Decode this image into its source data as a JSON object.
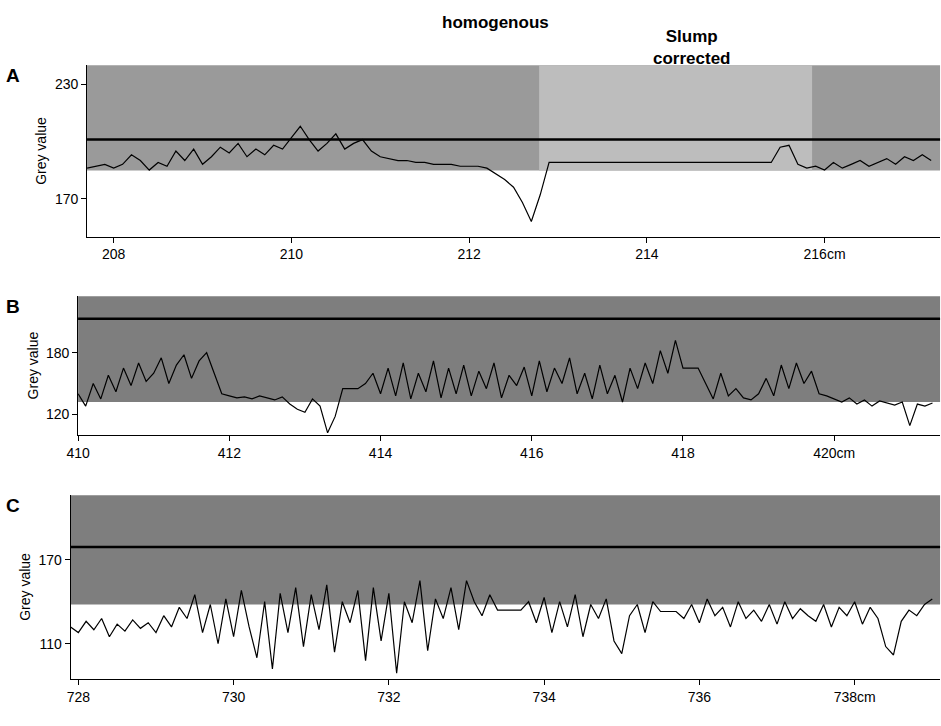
{
  "chart_data": [
    {
      "type": "line",
      "panel": "A",
      "y_label": "Grey value",
      "annotations": [
        {
          "text": "homogenous",
          "x": 212.3
        },
        {
          "text": "Slump corrected",
          "x": 214.5
        }
      ],
      "xlim": [
        207.7,
        217.3
      ],
      "xticks": [
        208,
        210,
        212,
        214,
        {
          "value": 216,
          "label": "216cm"
        }
      ],
      "ylim": [
        150,
        240
      ],
      "yticks": [
        170,
        230
      ],
      "threshold": 201,
      "color": "#000000",
      "x": [
        207.7,
        207.8,
        207.9,
        208.0,
        208.1,
        208.2,
        208.3,
        208.4,
        208.5,
        208.6,
        208.7,
        208.8,
        208.9,
        209.0,
        209.1,
        209.2,
        209.3,
        209.4,
        209.5,
        209.6,
        209.7,
        209.8,
        209.9,
        210.0,
        210.1,
        210.2,
        210.3,
        210.4,
        210.5,
        210.6,
        210.7,
        210.8,
        210.9,
        211.0,
        211.1,
        211.2,
        211.3,
        211.4,
        211.5,
        211.6,
        211.7,
        211.8,
        211.9,
        212.0,
        212.1,
        212.2,
        212.3,
        212.4,
        212.5,
        212.6,
        212.7,
        212.8,
        212.9,
        213.0,
        215.4,
        215.5,
        215.6,
        215.7,
        215.8,
        215.9,
        216.0,
        216.1,
        216.2,
        216.3,
        216.4,
        216.5,
        216.6,
        216.7,
        216.8,
        216.9,
        217.0,
        217.1,
        217.2
      ],
      "values": [
        186,
        187,
        188,
        186,
        188,
        193,
        190,
        185,
        189,
        187,
        195,
        190,
        196,
        188,
        192,
        197,
        194,
        199,
        192,
        196,
        193,
        198,
        196,
        202,
        208,
        201,
        195,
        199,
        204,
        196,
        199,
        201,
        195,
        192,
        191,
        190,
        190,
        189,
        189,
        188,
        188,
        188,
        187,
        187,
        187,
        186,
        183,
        180,
        176,
        168,
        158,
        172,
        189,
        189,
        189,
        197,
        198,
        188,
        186,
        187,
        185,
        189,
        186,
        188,
        190,
        187,
        189,
        191,
        188,
        192,
        190,
        193,
        190
      ]
    },
    {
      "type": "line",
      "panel": "B",
      "y_label": "Grey value",
      "xlim": [
        410,
        421.4
      ],
      "xticks": [
        410,
        412,
        414,
        416,
        418,
        {
          "value": 420,
          "label": "420cm"
        }
      ],
      "ylim": [
        100,
        235
      ],
      "yticks": [
        120,
        180
      ],
      "threshold": 213,
      "color": "#000000",
      "x": [
        410.0,
        410.1,
        410.2,
        410.3,
        410.4,
        410.5,
        410.6,
        410.7,
        410.8,
        410.9,
        411.0,
        411.1,
        411.2,
        411.3,
        411.4,
        411.5,
        411.6,
        411.7,
        411.8,
        411.9,
        412.0,
        412.1,
        412.2,
        412.3,
        412.4,
        412.5,
        412.6,
        412.7,
        412.8,
        412.9,
        413.0,
        413.1,
        413.2,
        413.3,
        413.4,
        413.5,
        413.6,
        413.7,
        413.8,
        413.9,
        414.0,
        414.1,
        414.2,
        414.3,
        414.4,
        414.5,
        414.6,
        414.7,
        414.8,
        414.9,
        415.0,
        415.1,
        415.2,
        415.3,
        415.4,
        415.5,
        415.6,
        415.7,
        415.8,
        415.9,
        416.0,
        416.1,
        416.2,
        416.3,
        416.4,
        416.5,
        416.6,
        416.7,
        416.8,
        416.9,
        417.0,
        417.1,
        417.2,
        417.3,
        417.4,
        417.5,
        417.6,
        417.7,
        417.8,
        417.9,
        418.0,
        418.1,
        418.2,
        418.3,
        418.4,
        418.5,
        418.6,
        418.7,
        418.8,
        418.9,
        419.0,
        419.1,
        419.2,
        419.3,
        419.4,
        419.5,
        419.6,
        419.7,
        419.8,
        419.9,
        420.0,
        420.1,
        420.2,
        420.3,
        420.4,
        420.5,
        420.6,
        420.7,
        420.8,
        420.9,
        421.0,
        421.1,
        421.2,
        421.3
      ],
      "values": [
        140,
        128,
        150,
        135,
        158,
        142,
        165,
        148,
        170,
        152,
        160,
        175,
        150,
        168,
        178,
        155,
        172,
        180,
        160,
        140,
        138,
        136,
        137,
        135,
        138,
        136,
        134,
        137,
        130,
        125,
        122,
        135,
        128,
        102,
        118,
        145,
        145,
        145,
        150,
        160,
        140,
        165,
        138,
        170,
        135,
        160,
        142,
        172,
        136,
        165,
        140,
        168,
        138,
        162,
        145,
        170,
        136,
        158,
        148,
        166,
        138,
        172,
        142,
        165,
        150,
        175,
        140,
        160,
        135,
        168,
        140,
        158,
        132,
        165,
        145,
        170,
        150,
        182,
        160,
        192,
        165,
        165,
        165,
        150,
        135,
        160,
        138,
        145,
        136,
        134,
        140,
        155,
        138,
        168,
        145,
        170,
        150,
        162,
        140,
        138,
        135,
        132,
        136,
        130,
        134,
        128,
        133,
        131,
        129,
        132,
        109,
        130,
        128,
        131
      ]
    },
    {
      "type": "line",
      "panel": "C",
      "y_label": "Grey value",
      "xlim": [
        727.9,
        739.1
      ],
      "xticks": [
        728,
        730,
        732,
        734,
        736,
        {
          "value": 738,
          "label": "738cm"
        }
      ],
      "ylim": [
        85,
        216
      ],
      "yticks": [
        110,
        170
      ],
      "threshold": 179,
      "color": "#000000",
      "x": [
        727.9,
        728.0,
        728.1,
        728.2,
        728.3,
        728.4,
        728.5,
        728.6,
        728.7,
        728.8,
        728.9,
        729.0,
        729.1,
        729.2,
        729.3,
        729.4,
        729.5,
        729.6,
        729.7,
        729.8,
        729.9,
        730.0,
        730.1,
        730.2,
        730.3,
        730.4,
        730.5,
        730.6,
        730.7,
        730.8,
        730.9,
        731.0,
        731.1,
        731.2,
        731.3,
        731.4,
        731.5,
        731.6,
        731.7,
        731.8,
        731.9,
        732.0,
        732.1,
        732.2,
        732.3,
        732.4,
        732.5,
        732.6,
        732.7,
        732.8,
        732.9,
        733.0,
        733.1,
        733.2,
        733.3,
        733.4,
        733.5,
        733.6,
        733.7,
        733.8,
        733.9,
        734.0,
        734.1,
        734.2,
        734.3,
        734.4,
        734.5,
        734.6,
        734.7,
        734.8,
        734.9,
        735.0,
        735.1,
        735.2,
        735.3,
        735.4,
        735.5,
        735.6,
        735.7,
        735.8,
        735.9,
        736.0,
        736.1,
        736.2,
        736.3,
        736.4,
        736.5,
        736.6,
        736.7,
        736.8,
        736.9,
        737.0,
        737.1,
        737.2,
        737.3,
        737.4,
        737.5,
        737.6,
        737.7,
        737.8,
        737.9,
        738.0,
        738.1,
        738.2,
        738.3,
        738.4,
        738.5,
        738.6,
        738.7,
        738.8,
        738.9,
        739.0
      ],
      "values": [
        122,
        118,
        126,
        120,
        128,
        115,
        124,
        119,
        127,
        121,
        125,
        118,
        130,
        122,
        136,
        128,
        145,
        118,
        138,
        110,
        142,
        115,
        148,
        122,
        100,
        140,
        92,
        146,
        118,
        150,
        108,
        145,
        120,
        152,
        104,
        140,
        125,
        148,
        98,
        150,
        112,
        146,
        89,
        140,
        125,
        155,
        105,
        142,
        128,
        150,
        120,
        155,
        140,
        130,
        145,
        134,
        134,
        134,
        134,
        140,
        125,
        143,
        118,
        140,
        122,
        145,
        115,
        138,
        128,
        142,
        112,
        103,
        130,
        138,
        118,
        140,
        133,
        133,
        133,
        128,
        138,
        125,
        142,
        130,
        136,
        122,
        140,
        128,
        134,
        126,
        138,
        124,
        140,
        128,
        135,
        130,
        126,
        138,
        122,
        136,
        130,
        140,
        124,
        136,
        128,
        108,
        102,
        126,
        134,
        130,
        138,
        142
      ]
    }
  ]
}
